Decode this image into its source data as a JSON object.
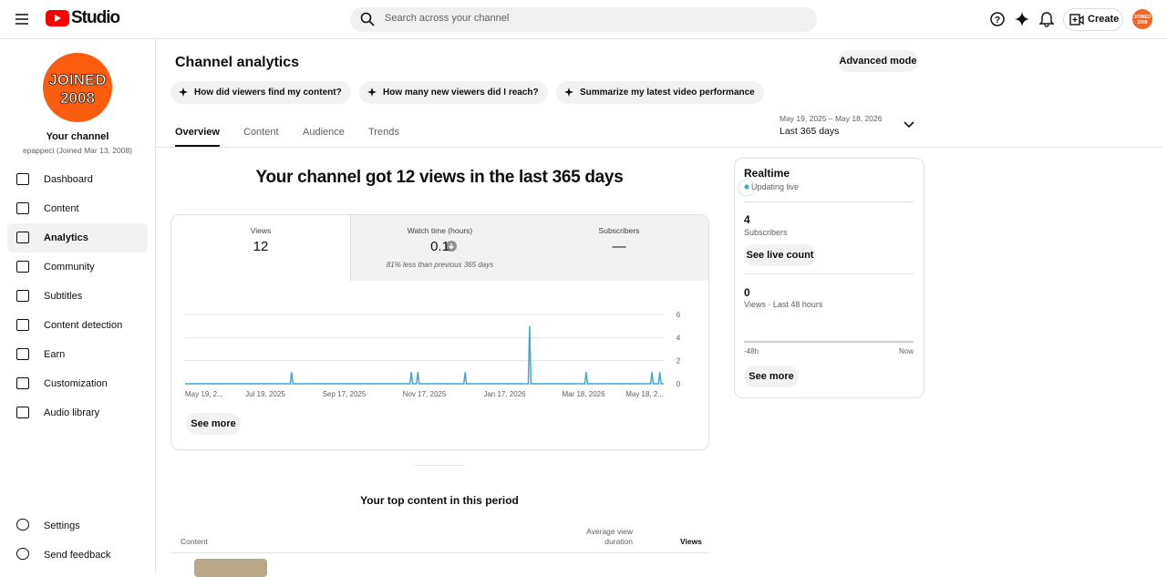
{
  "header": {
    "brand": "Studio",
    "search_placeholder": "Search across your channel",
    "create": "Create",
    "avatar": [
      "JOINED",
      "2008"
    ]
  },
  "sidebar": {
    "avatar": [
      "JOINED",
      "2008"
    ],
    "channel_title": "Your channel",
    "channel_sub": "epappeci (Joined Mar 13, 2008)",
    "nav": [
      {
        "label": "Dashboard"
      },
      {
        "label": "Content"
      },
      {
        "label": "Analytics",
        "active": true
      },
      {
        "label": "Community"
      },
      {
        "label": "Subtitles"
      },
      {
        "label": "Content detection"
      },
      {
        "label": "Earn"
      },
      {
        "label": "Customization"
      },
      {
        "label": "Audio library"
      }
    ],
    "footer": [
      "Settings",
      "Send feedback"
    ]
  },
  "page": {
    "title": "Channel analytics",
    "advanced_mode": "Advanced mode",
    "prompts": [
      "How did viewers find my content?",
      "How many new viewers did I reach?",
      "Summarize my latest video performance"
    ],
    "tabs": [
      "Overview",
      "Content",
      "Audience",
      "Trends"
    ],
    "date_range": "May 19, 2025 – May 18, 2026",
    "period": "Last 365 days",
    "headline": "Your channel got 12 views in the last 365 days",
    "metrics": [
      {
        "label": "Views",
        "value": 12
      },
      {
        "label": "Watch time (hours)",
        "value": 0.1,
        "note": "81% less than previous 365 days"
      },
      {
        "label": "Subscribers",
        "value": "—"
      }
    ],
    "see_more": "See more"
  },
  "chart_data": {
    "type": "line",
    "x": [
      0,
      80,
      81,
      82,
      171,
      172,
      173,
      176,
      177,
      178,
      212,
      213,
      214,
      261,
      262,
      263,
      304,
      305,
      306,
      354,
      355,
      356,
      360,
      361,
      362,
      364
    ],
    "series": [
      {
        "name": "Views",
        "color": "#41a7cf",
        "values": [
          0,
          0,
          1,
          0,
          0,
          1,
          0,
          0,
          1,
          0,
          0,
          1,
          0,
          0,
          5,
          0,
          0,
          1,
          0,
          0,
          1,
          0,
          0,
          1,
          0,
          0
        ]
      }
    ],
    "xlim": [
      0,
      364
    ],
    "xticks": [
      {
        "value": 0,
        "label": "May 19, 2..."
      },
      {
        "value": 61,
        "label": "Jul 19, 2025"
      },
      {
        "value": 121,
        "label": "Sep 17, 2025"
      },
      {
        "value": 182,
        "label": "Nov 17, 2025"
      },
      {
        "value": 243,
        "label": "Jan 17, 2026"
      },
      {
        "value": 303,
        "label": "Mar 18, 2026"
      },
      {
        "value": 364,
        "label": "May 18, 2..."
      }
    ],
    "ylim": [
      0,
      6
    ],
    "yticks": [
      0,
      2,
      4,
      6
    ],
    "grid": true
  },
  "realtime": {
    "title": "Realtime",
    "status": "Updating live",
    "subscribers": 4,
    "subscribers_label": "Subscribers",
    "live_count_button": "See live count",
    "views": 0,
    "views_label": "Views · Last 48 hours",
    "axis_start": "-48h",
    "axis_end": "Now",
    "see_more": "See more"
  },
  "top_content": {
    "title": "Your top content in this period",
    "columns": [
      "Content",
      "Average view duration",
      "Views"
    ]
  }
}
